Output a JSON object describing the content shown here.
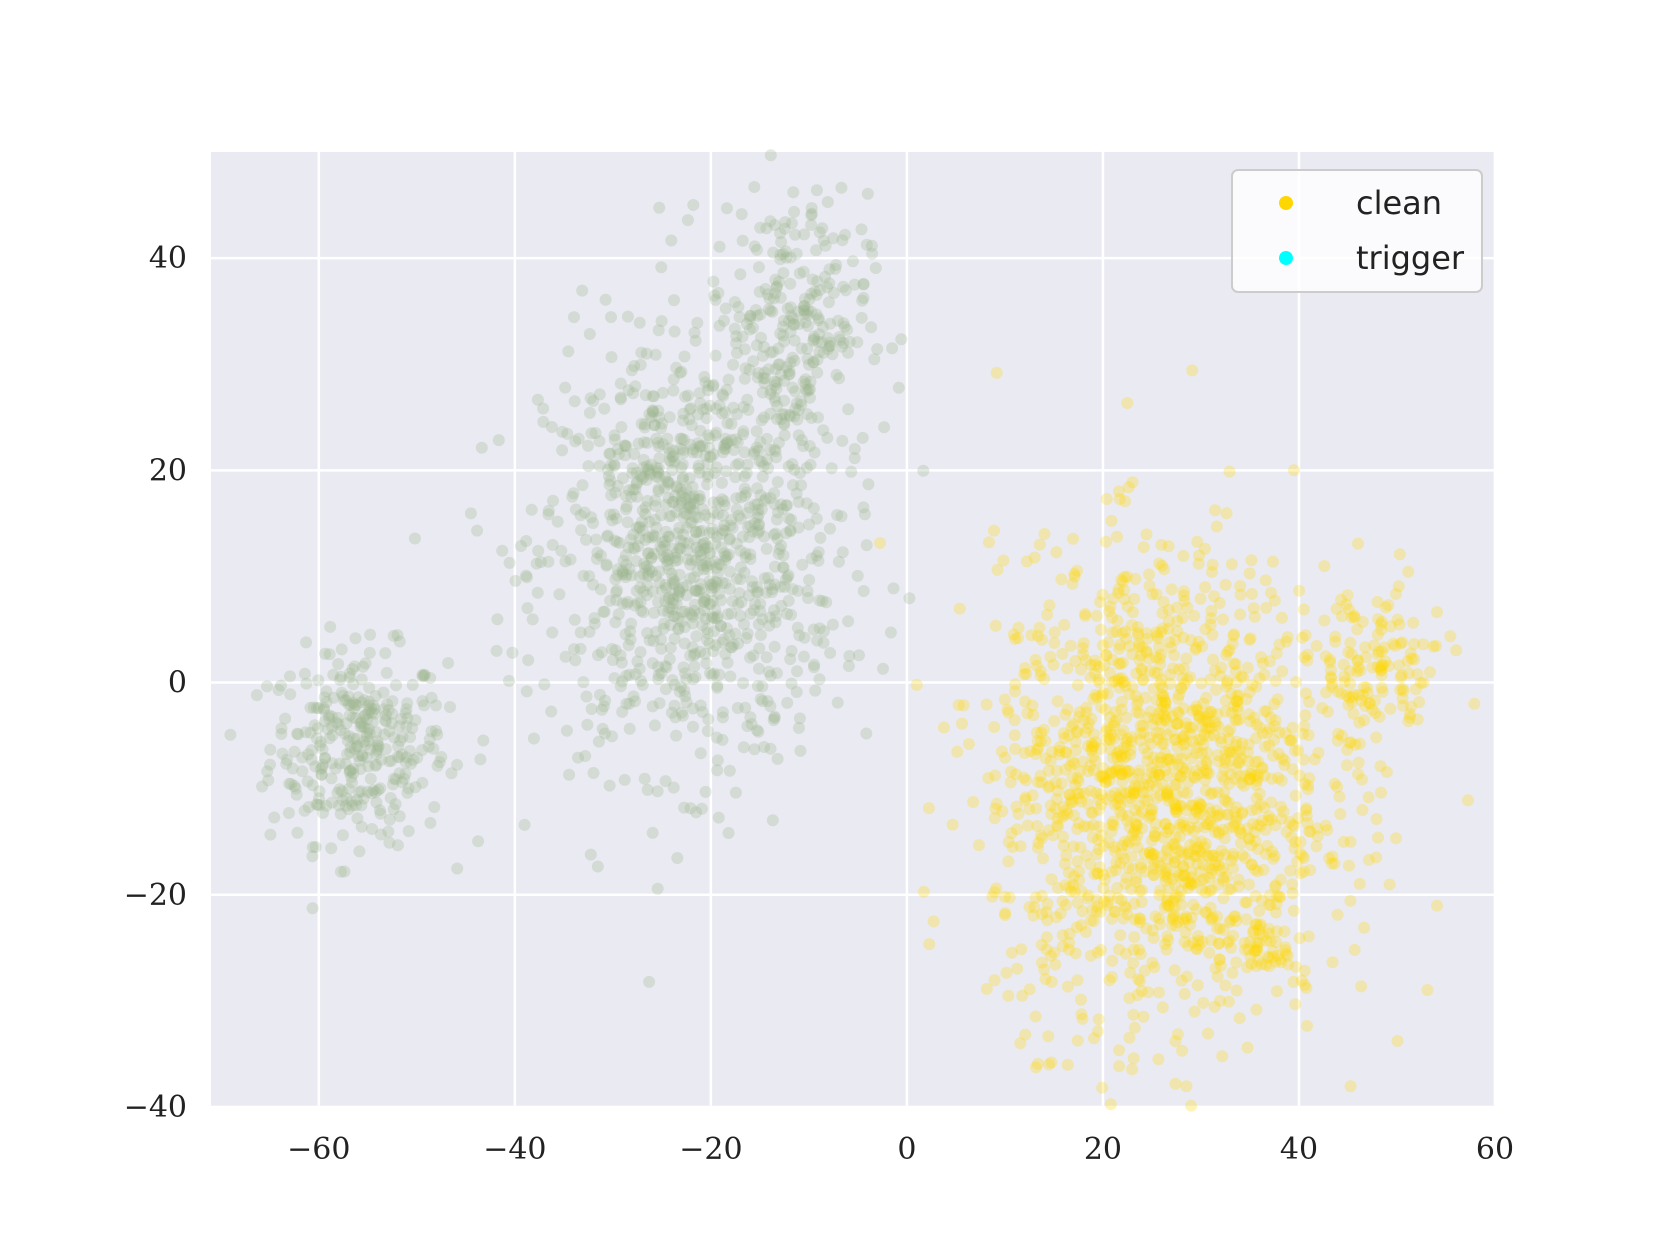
{
  "chart_data": {
    "type": "scatter",
    "title": "",
    "xlabel": "",
    "ylabel": "",
    "xlim": [
      -71,
      60
    ],
    "ylim": [
      -40,
      50
    ],
    "x_ticks": [
      -60,
      -40,
      -20,
      0,
      20,
      40,
      60
    ],
    "y_ticks": [
      -40,
      -20,
      0,
      20,
      40
    ],
    "x_tick_labels": [
      "−60",
      "−40",
      "−20",
      "0",
      "20",
      "40",
      "60"
    ],
    "y_tick_labels": [
      "−40",
      "−20",
      "0",
      "20",
      "40"
    ],
    "grid": true,
    "legend_position": "top-right",
    "background_color": "#eaeaf2",
    "legend": [
      {
        "name": "clean",
        "color": "#ffd700"
      },
      {
        "name": "trigger",
        "color": "#00ffff"
      }
    ],
    "series": [
      {
        "name": "unlabeled-green-cluster",
        "color": "#9cb58c",
        "opacity": 0.28,
        "clusters": [
          {
            "cx": -56,
            "cy": -6,
            "sx": 4.5,
            "sy": 4.5,
            "n": 330
          },
          {
            "cx": -22,
            "cy": 12,
            "sx": 7.5,
            "sy": 10,
            "n": 1050
          },
          {
            "cx": -12,
            "cy": 34,
            "sx": 4,
            "sy": 6,
            "n": 260
          }
        ]
      },
      {
        "name": "clean",
        "color": "#ffd700",
        "opacity": 0.28,
        "clusters": [
          {
            "cx": 26,
            "cy": -10,
            "sx": 8.5,
            "sy": 11,
            "n": 1500
          },
          {
            "cx": 47,
            "cy": 1,
            "sx": 4,
            "sy": 4,
            "n": 150
          },
          {
            "cx": 37,
            "cy": -25,
            "sx": 1.5,
            "sy": 1.5,
            "n": 40
          }
        ]
      }
    ]
  }
}
